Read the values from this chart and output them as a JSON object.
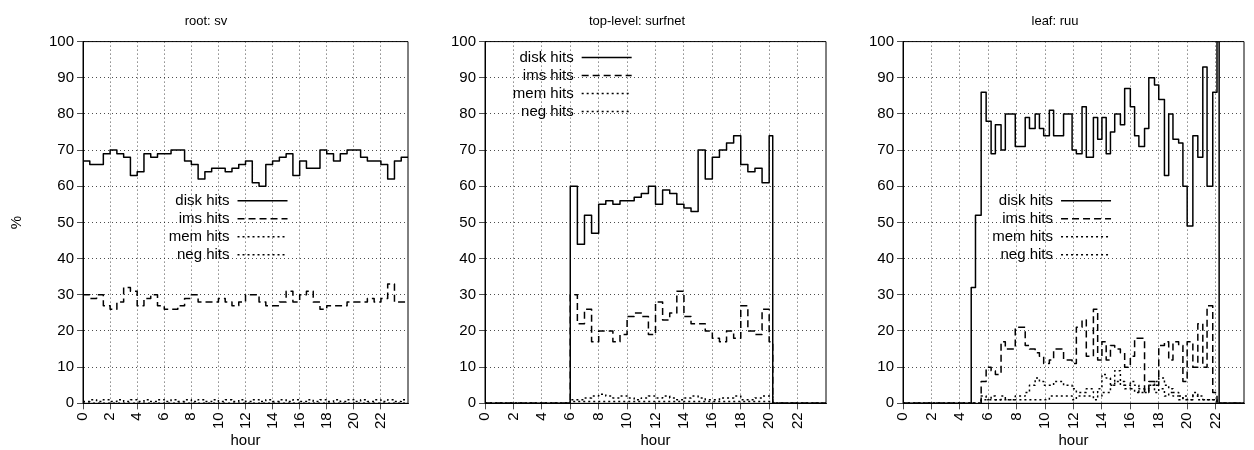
{
  "chart_data": [
    {
      "type": "step",
      "title": "root: sv",
      "xlabel": "hour",
      "ylabel": "%",
      "xlim": [
        0,
        24
      ],
      "xticks": [
        0,
        2,
        4,
        6,
        8,
        10,
        12,
        14,
        16,
        18,
        20,
        22
      ],
      "ylim": [
        0,
        100
      ],
      "yticks": [
        0,
        10,
        20,
        30,
        40,
        50,
        60,
        70,
        80,
        90,
        100
      ],
      "grid": true,
      "legend": "center left",
      "x": [
        0,
        0.5,
        1,
        1.5,
        2,
        2.5,
        3,
        3.5,
        4,
        4.5,
        5,
        5.5,
        6,
        6.5,
        7,
        7.5,
        8,
        8.5,
        9,
        9.5,
        10,
        10.5,
        11,
        11.5,
        12,
        12.5,
        13,
        13.5,
        14,
        14.5,
        15,
        15.5,
        16,
        16.5,
        17,
        17.5,
        18,
        18.5,
        19,
        19.5,
        20,
        20.5,
        21,
        21.5,
        22,
        22.5,
        23,
        23.5,
        24
      ],
      "series": [
        {
          "name": "disk hits",
          "color": "#000000",
          "line_style": "solid",
          "values": [
            67,
            66,
            66,
            69,
            70,
            69,
            68,
            63,
            64,
            69,
            68,
            69,
            69,
            70,
            70,
            67,
            66,
            62,
            64,
            65,
            65,
            64,
            65,
            66,
            67,
            61,
            60,
            66,
            67,
            68,
            69,
            63,
            67,
            65,
            65,
            70,
            69,
            67,
            69,
            70,
            70,
            68,
            67,
            67,
            66,
            62,
            67,
            68,
            68
          ]
        },
        {
          "name": "ims hits",
          "color": "#000000",
          "line_style": "dashed",
          "values": [
            30,
            29,
            30,
            27,
            26,
            28,
            32,
            31,
            27,
            29,
            30,
            27,
            26,
            26,
            27,
            29,
            30,
            28,
            28,
            28,
            29,
            28,
            27,
            28,
            30,
            30,
            28,
            27,
            27,
            28,
            31,
            28,
            30,
            31,
            28,
            26,
            27,
            27,
            27,
            28,
            28,
            28,
            29,
            28,
            29,
            33,
            28,
            28,
            28
          ]
        },
        {
          "name": "mem hits",
          "color": "#000000",
          "line_style": "dotted",
          "values": [
            0.5,
            1,
            0.5,
            1,
            0.5,
            1,
            0.5,
            1,
            0.5,
            1,
            0.5,
            1,
            0.5,
            1,
            0.5,
            1,
            0.5,
            1,
            0.5,
            1,
            0.5,
            1,
            0.5,
            1,
            0.5,
            1,
            0.5,
            1,
            0.5,
            1,
            0.5,
            1,
            0.5,
            1,
            0.5,
            1,
            0.5,
            1,
            0.5,
            1,
            0.5,
            1,
            0.5,
            1,
            0.5,
            1,
            0.5,
            1,
            1
          ]
        },
        {
          "name": "neg hits",
          "color": "#000000",
          "line_style": "dotted",
          "values": [
            0,
            0,
            0,
            0,
            0,
            0,
            0,
            0,
            0,
            0,
            0,
            0,
            0,
            0,
            0,
            0,
            0,
            0,
            0,
            0,
            0,
            0,
            0,
            0,
            0,
            0,
            0,
            0,
            0,
            0,
            0,
            0,
            0,
            0,
            0,
            0,
            0,
            0,
            0,
            0,
            0,
            0,
            0,
            0,
            0,
            0,
            0,
            0,
            0
          ]
        }
      ]
    },
    {
      "type": "step",
      "title": "top-level: surfnet",
      "xlabel": "hour",
      "xlim": [
        0,
        24
      ],
      "xticks": [
        0,
        2,
        4,
        6,
        8,
        10,
        12,
        14,
        16,
        18,
        20,
        22
      ],
      "ylim": [
        0,
        100
      ],
      "yticks": [
        0,
        10,
        20,
        30,
        40,
        50,
        60,
        70,
        80,
        90,
        100
      ],
      "grid": true,
      "legend": "top left",
      "x": [
        0,
        6,
        6.5,
        7,
        7.5,
        8,
        8.5,
        9,
        9.5,
        10,
        10.5,
        11,
        11.5,
        12,
        12.5,
        13,
        13.5,
        14,
        14.5,
        15,
        15.5,
        16,
        16.5,
        17,
        17.5,
        18,
        18.5,
        19,
        19.5,
        20,
        20.25,
        24
      ],
      "series": [
        {
          "name": "disk hits",
          "color": "#000000",
          "line_style": "solid",
          "values": [
            0,
            60,
            44,
            52,
            47,
            55,
            56,
            55,
            56,
            56,
            57,
            58,
            60,
            55,
            59,
            58,
            55,
            54,
            53,
            70,
            62,
            68,
            70,
            72,
            74,
            66,
            64,
            65,
            61,
            74,
            0,
            0
          ]
        },
        {
          "name": "ims hits",
          "color": "#000000",
          "line_style": "dashed",
          "values": [
            0,
            30,
            22,
            26,
            17,
            20,
            20,
            17,
            19,
            24,
            25,
            24,
            19,
            28,
            23,
            25,
            31,
            24,
            22,
            22,
            20,
            18,
            17,
            20,
            18,
            27,
            20,
            19,
            26,
            17,
            0,
            0
          ]
        },
        {
          "name": "mem hits",
          "color": "#000000",
          "line_style": "dotted",
          "values": [
            0,
            1,
            1,
            1.5,
            2,
            2.5,
            2,
            1.5,
            2,
            1.5,
            1,
            1.5,
            2,
            1.5,
            2,
            1.5,
            1,
            1.5,
            2,
            1.5,
            1,
            1,
            1.5,
            1.5,
            2,
            1,
            1,
            1.5,
            2,
            2,
            0,
            0
          ]
        },
        {
          "name": "neg hits",
          "color": "#000000",
          "line_style": "dotted",
          "values": [
            0,
            0.5,
            0.5,
            0.5,
            0.5,
            0.5,
            0.5,
            0.5,
            0.5,
            0.5,
            0.5,
            0.5,
            0.5,
            0.5,
            0.5,
            0.5,
            0.5,
            0.5,
            0.5,
            0.5,
            0.5,
            0.5,
            0.5,
            0.5,
            0.5,
            0.5,
            0.5,
            0.5,
            0.5,
            0.5,
            0,
            0
          ]
        }
      ]
    },
    {
      "type": "step",
      "title": "leaf: ruu",
      "xlabel": "hour",
      "xlim": [
        0,
        24
      ],
      "xticks": [
        0,
        2,
        4,
        6,
        8,
        10,
        12,
        14,
        16,
        18,
        20,
        22
      ],
      "ylim": [
        0,
        100
      ],
      "yticks": [
        0,
        10,
        20,
        30,
        40,
        50,
        60,
        70,
        80,
        90,
        100
      ],
      "grid": true,
      "legend": "center left",
      "x": [
        0,
        4.8,
        5.1,
        5.5,
        5.85,
        6.2,
        6.5,
        6.9,
        7.2,
        7.9,
        8.6,
        8.9,
        9.3,
        9.6,
        9.9,
        10.3,
        10.6,
        11.3,
        11.9,
        12.2,
        12.6,
        12.9,
        13.4,
        13.7,
        14,
        14.3,
        14.6,
        14.9,
        15.3,
        15.6,
        16,
        16.3,
        16.6,
        17,
        17.3,
        17.7,
        18,
        18.4,
        18.7,
        19,
        19.4,
        19.7,
        20,
        20.4,
        20.75,
        21.1,
        21.4,
        21.8,
        22.1,
        22.25,
        24
      ],
      "series": [
        {
          "name": "disk hits",
          "color": "#000000",
          "line_style": "solid",
          "values": [
            0,
            32,
            52,
            86,
            78,
            69,
            77,
            70,
            80,
            71,
            79,
            76,
            80,
            76,
            74,
            81,
            74,
            80,
            70,
            69,
            82,
            68,
            79,
            73,
            79,
            69,
            75,
            80,
            77,
            87,
            82,
            74,
            71,
            76,
            90,
            88,
            84,
            63,
            80,
            73,
            72,
            60,
            49,
            74,
            68,
            93,
            60,
            86,
            100,
            0,
            0
          ]
        },
        {
          "name": "ims hits",
          "color": "#000000",
          "line_style": "dashed",
          "values": [
            0,
            0,
            0,
            6,
            10,
            9,
            8,
            17,
            15,
            21,
            16,
            15,
            14,
            13,
            11,
            12,
            15,
            12,
            11,
            21,
            23,
            13,
            26,
            12,
            17,
            12,
            16,
            15,
            14,
            10,
            13,
            18,
            18,
            3,
            6,
            5,
            16,
            17,
            12,
            17,
            16,
            6,
            17,
            10,
            22,
            10,
            27,
            3,
            0,
            0,
            0
          ]
        },
        {
          "name": "mem hits",
          "color": "#000000",
          "line_style": "dotted",
          "values": [
            0,
            0,
            0,
            2,
            1,
            2,
            1,
            2,
            1,
            2,
            3,
            5,
            7,
            6,
            5,
            5,
            6,
            5,
            4,
            3,
            3,
            4,
            3,
            4,
            8,
            7,
            5,
            9,
            6,
            5,
            4,
            3,
            4,
            3,
            5,
            3,
            4,
            2,
            3,
            2,
            1,
            2,
            1,
            3,
            2,
            1,
            1,
            1,
            0,
            0,
            0
          ]
        },
        {
          "name": "neg hits",
          "color": "#000000",
          "line_style": "dotted",
          "values": [
            0,
            0,
            0,
            1,
            1,
            1,
            1,
            1,
            1,
            1,
            1,
            1,
            1,
            1,
            1,
            2,
            2,
            2,
            1,
            2,
            2,
            2,
            1,
            2,
            3,
            3,
            5,
            6,
            5,
            4,
            6,
            5,
            3,
            4,
            5,
            6,
            7,
            5,
            4,
            3,
            2,
            1,
            1,
            2,
            1,
            1,
            1,
            1,
            0,
            0,
            0
          ]
        }
      ]
    }
  ]
}
